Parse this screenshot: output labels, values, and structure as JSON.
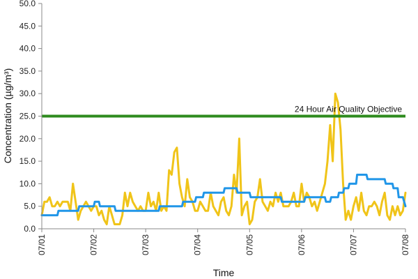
{
  "chart_data": {
    "type": "line",
    "title": "",
    "xlabel": "Time",
    "ylabel": "Concentration (µg/m³)",
    "ylim": [
      0,
      50
    ],
    "y_ticks": [
      "0.0",
      "5.0",
      "10.0",
      "15.0",
      "20.0",
      "25.0",
      "30.0",
      "35.0",
      "40.0",
      "45.0",
      "50.0"
    ],
    "x_ticks": [
      "07/01",
      "07/02",
      "07/03",
      "07/04",
      "07/05",
      "07/06",
      "07/07",
      "07/08"
    ],
    "x_unit": "day",
    "grid": false,
    "legend": "none",
    "colors": {
      "hourly": "#F0C419",
      "daily": "#2196E8",
      "objective": "#2E8B1E",
      "axis": "#888888"
    },
    "series": [
      {
        "color": "#F0C419",
        "x": [
          0,
          0.05,
          0.1,
          0.15,
          0.2,
          0.25,
          0.3,
          0.35,
          0.4,
          0.45,
          0.5,
          0.55,
          0.6,
          0.65,
          0.7,
          0.75,
          0.8,
          0.85,
          0.9,
          0.95,
          1.0,
          1.05,
          1.1,
          1.15,
          1.2,
          1.25,
          1.3,
          1.35,
          1.4,
          1.45,
          1.5,
          1.55,
          1.6,
          1.65,
          1.7,
          1.75,
          1.8,
          1.85,
          1.9,
          1.95,
          2.0,
          2.05,
          2.1,
          2.15,
          2.2,
          2.25,
          2.3,
          2.35,
          2.4,
          2.45,
          2.5,
          2.55,
          2.6,
          2.65,
          2.7,
          2.75,
          2.8,
          2.85,
          2.9,
          2.95,
          3.0,
          3.05,
          3.1,
          3.15,
          3.2,
          3.25,
          3.3,
          3.35,
          3.4,
          3.45,
          3.5,
          3.55,
          3.6,
          3.65,
          3.7,
          3.75,
          3.8,
          3.85,
          3.9,
          3.95,
          4.0,
          4.05,
          4.1,
          4.15,
          4.2,
          4.25,
          4.3,
          4.35,
          4.4,
          4.45,
          4.5,
          4.55,
          4.6,
          4.65,
          4.7,
          4.75,
          4.8,
          4.85,
          4.9,
          4.95,
          5.0,
          5.05,
          5.1,
          5.15,
          5.2,
          5.25,
          5.3,
          5.35,
          5.4,
          5.45,
          5.5,
          5.55,
          5.6,
          5.65,
          5.7,
          5.75,
          5.8,
          5.85,
          5.9,
          5.95,
          6.0,
          6.05,
          6.1,
          6.15,
          6.2,
          6.25,
          6.3,
          6.35,
          6.4,
          6.45,
          6.5,
          6.55,
          6.6,
          6.65,
          6.7,
          6.75,
          6.8,
          6.85,
          6.9,
          6.95,
          7.0
        ],
        "values": [
          3,
          6,
          6,
          7,
          5,
          5,
          6,
          5,
          6,
          6,
          6,
          4,
          10,
          6,
          2,
          4,
          5,
          6,
          5,
          4,
          5,
          5,
          3,
          4,
          2,
          1,
          5,
          3,
          1,
          1,
          1,
          3,
          8,
          5,
          8,
          6,
          5,
          4,
          5,
          4,
          4,
          8,
          5,
          6,
          4,
          8,
          4,
          5,
          4,
          13,
          12,
          17,
          18,
          10,
          7,
          5,
          11,
          7,
          6,
          4,
          4,
          6,
          5,
          4,
          4,
          8,
          5,
          4,
          3,
          6,
          7,
          4,
          3,
          5,
          12,
          8,
          20,
          3,
          5,
          6,
          1,
          2,
          6,
          7,
          11,
          6,
          5,
          4,
          6,
          5,
          8,
          6,
          8,
          5,
          5,
          5,
          6,
          8,
          5,
          5,
          10,
          6,
          8,
          7,
          5,
          6,
          4,
          6,
          8,
          10,
          15,
          23,
          15,
          30,
          28,
          22,
          10,
          2,
          4,
          2,
          5,
          7,
          4,
          8,
          4,
          3,
          5,
          5,
          6,
          5,
          3,
          6,
          8,
          3,
          2,
          5,
          3,
          5,
          3,
          4,
          8
        ]
      },
      {
        "color": "#2196E8",
        "x": [
          0,
          0.3,
          0.32,
          0.7,
          0.72,
          1.0,
          1.02,
          1.1,
          1.12,
          1.4,
          1.42,
          1.7,
          1.72,
          2.0,
          2.02,
          2.25,
          2.27,
          2.35,
          2.37,
          2.5,
          2.52,
          2.7,
          2.72,
          2.95,
          2.97,
          3.1,
          3.12,
          3.3,
          3.32,
          3.5,
          3.52,
          3.75,
          3.77,
          4.0,
          4.02,
          4.3,
          4.32,
          4.6,
          4.62,
          4.85,
          4.87,
          5.05,
          5.07,
          5.2,
          5.22,
          5.3,
          5.32,
          5.45,
          5.47,
          5.55,
          5.57,
          5.7,
          5.72,
          5.8,
          5.82,
          5.9,
          5.92,
          6.05,
          6.07,
          6.25,
          6.27,
          6.35,
          6.37,
          6.5,
          6.52,
          6.6,
          6.62,
          6.75,
          6.77,
          6.85,
          6.87,
          6.95,
          7.0
        ],
        "values": [
          3,
          3,
          4,
          4,
          5,
          5,
          6,
          6,
          5,
          5,
          4,
          4,
          4,
          4,
          4,
          4,
          5,
          5,
          5,
          5,
          5,
          5,
          6,
          6,
          7,
          7,
          8,
          8,
          8,
          8,
          9,
          9,
          8,
          8,
          7,
          7,
          7,
          7,
          6,
          6,
          6,
          6,
          7,
          7,
          7,
          7,
          7,
          7,
          6,
          6,
          7,
          7,
          8,
          8,
          9,
          9,
          10,
          10,
          12,
          12,
          11,
          11,
          11,
          11,
          11,
          11,
          10,
          10,
          9,
          9,
          7,
          7,
          5
        ]
      }
    ],
    "reference_line": {
      "value": 25,
      "label": "24 Hour Air Quality Objective"
    }
  }
}
